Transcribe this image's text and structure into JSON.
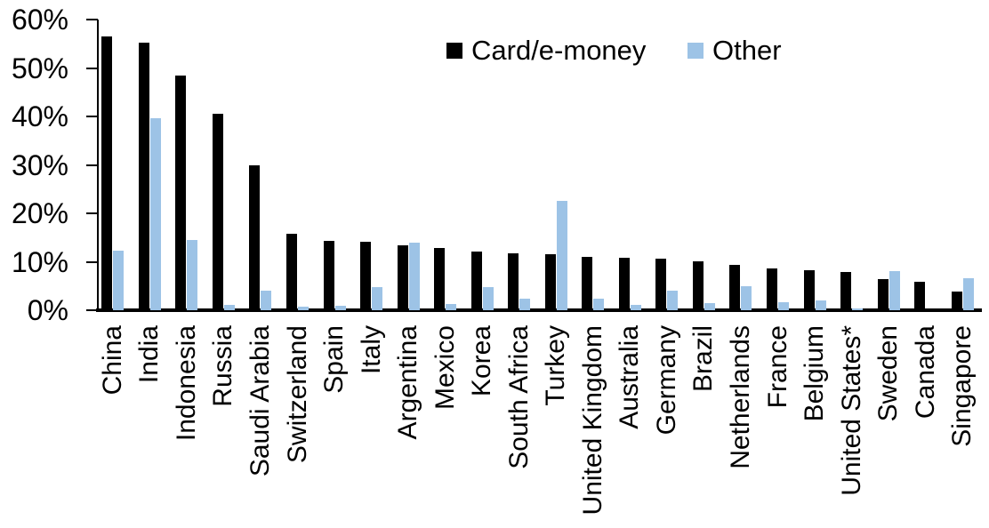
{
  "chart_data": {
    "type": "bar",
    "title": "",
    "xlabel": "",
    "ylabel": "",
    "ylim": [
      0,
      60
    ],
    "ytick_labels": [
      "0%",
      "10%",
      "20%",
      "30%",
      "40%",
      "50%",
      "60%"
    ],
    "grid": false,
    "legend_position": "top-inside",
    "categories": [
      "China",
      "India",
      "Indonesia",
      "Russia",
      "Saudi Arabia",
      "Switzerland",
      "Spain",
      "Italy",
      "Argentina",
      "Mexico",
      "Korea",
      "South Africa",
      "Turkey",
      "United Kingdom",
      "Australia",
      "Germany",
      "Brazil",
      "Netherlands",
      "France",
      "Belgium",
      "United States*",
      "Sweden",
      "Canada",
      "Singapore"
    ],
    "series": [
      {
        "name": "Card/e-money",
        "color": "#000000",
        "values": [
          56.5,
          55.2,
          48.4,
          40.6,
          29.9,
          15.8,
          14.3,
          14.2,
          13.4,
          12.8,
          12.2,
          11.7,
          11.6,
          11.1,
          10.8,
          10.6,
          10.1,
          9.3,
          8.6,
          8.2,
          7.9,
          6.5,
          5.9,
          3.9
        ]
      },
      {
        "name": "Other",
        "color": "#9DC3E6",
        "values": [
          12.3,
          39.6,
          14.5,
          1.1,
          4.0,
          0.8,
          1.0,
          4.7,
          13.9,
          1.3,
          4.8,
          2.4,
          22.6,
          2.4,
          1.2,
          4.0,
          1.5,
          5.0,
          1.7,
          2.1,
          0.3,
          8.1,
          0,
          6.7
        ]
      }
    ]
  },
  "colors": {
    "background": "#ffffff",
    "axis": "#000000",
    "card_bar": "#000000",
    "other_bar": "#9DC3E6"
  }
}
